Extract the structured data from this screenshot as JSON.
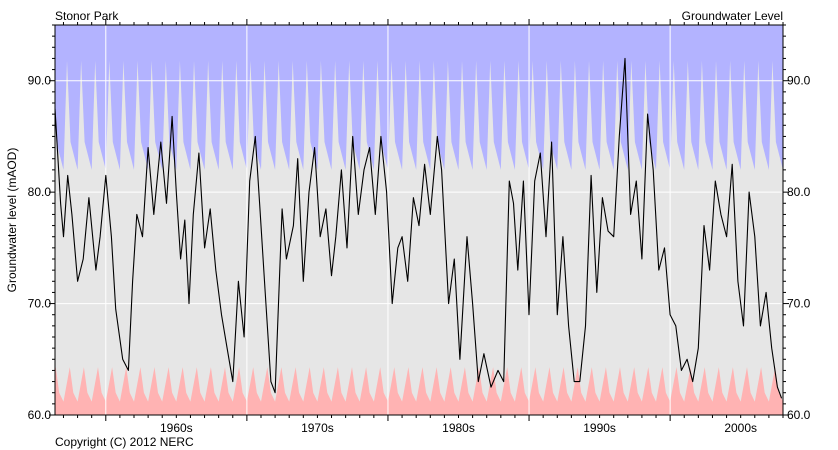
{
  "chart_data": {
    "type": "line",
    "title_left": "Stonor Park",
    "title_right": "Groundwater Level",
    "ylabel": "Groundwater level (mAOD)",
    "copyright": "Copyright (C) 2012 NERC",
    "xlabel": "",
    "xlim": [
      1956.4,
      2008.0
    ],
    "ylim": [
      60.0,
      95.0
    ],
    "x_ticks": [
      {
        "value": 1965.0,
        "label": "1960s"
      },
      {
        "value": 1975.0,
        "label": "1970s"
      },
      {
        "value": 1985.0,
        "label": "1980s"
      },
      {
        "value": 1995.0,
        "label": "1990s"
      },
      {
        "value": 2005.0,
        "label": "2000s"
      }
    ],
    "x_decade_gridlines": [
      1960,
      1970,
      1980,
      1990,
      2000
    ],
    "y_ticks": [
      {
        "value": 60.0,
        "label": "60.0"
      },
      {
        "value": 70.0,
        "label": "70.0"
      },
      {
        "value": 80.0,
        "label": "80.0"
      },
      {
        "value": 90.0,
        "label": "90.0"
      }
    ],
    "grid": true,
    "colors": {
      "plot_background": "#e6e6e6",
      "high_band": "#b3b3ff",
      "low_band": "#ffb3b3",
      "series_line": "#000000",
      "gridline": "#ffffff"
    },
    "series": [
      {
        "x": [
          1956.4,
          1956.8,
          1957.0,
          1957.3,
          1957.6,
          1958.0,
          1958.4,
          1958.8,
          1959.3,
          1959.6,
          1960.0,
          1960.4,
          1960.7,
          1961.2,
          1961.6,
          1961.9,
          1962.2,
          1962.6,
          1963.0,
          1963.4,
          1963.9,
          1964.3,
          1964.7,
          1965.0,
          1965.3,
          1965.6,
          1965.9,
          1966.2,
          1966.6,
          1967.0,
          1967.4,
          1967.8,
          1968.2,
          1968.6,
          1969.0,
          1969.4,
          1969.8,
          1970.2,
          1970.6,
          1970.9,
          1971.3,
          1971.7,
          1972.0,
          1972.5,
          1972.8,
          1973.3,
          1973.6,
          1974.0,
          1974.4,
          1974.8,
          1975.2,
          1975.6,
          1976.0,
          1976.3,
          1976.7,
          1977.1,
          1977.5,
          1977.9,
          1978.3,
          1978.7,
          1979.1,
          1979.5,
          1979.9,
          1980.3,
          1980.7,
          1981.0,
          1981.4,
          1981.8,
          1982.2,
          1982.6,
          1983.0,
          1983.5,
          1983.8,
          1984.3,
          1984.7,
          1985.1,
          1985.6,
          1986.0,
          1986.4,
          1986.8,
          1987.3,
          1987.8,
          1988.2,
          1988.6,
          1988.9,
          1989.2,
          1989.6,
          1990.0,
          1990.4,
          1990.8,
          1991.2,
          1991.6,
          1992.0,
          1992.4,
          1992.8,
          1993.2,
          1993.6,
          1994.0,
          1994.4,
          1994.8,
          1995.2,
          1995.6,
          1996.0,
          1996.4,
          1996.8,
          1997.2,
          1997.6,
          1998.0,
          1998.4,
          1998.8,
          1999.2,
          1999.6,
          2000.0,
          2000.4,
          2000.8,
          2001.2,
          2001.6,
          2002.0,
          2002.4,
          2002.8,
          2003.2,
          2003.6,
          2004.0,
          2004.4,
          2004.8,
          2005.2,
          2005.6,
          2006.0,
          2006.4,
          2006.8,
          2007.2,
          2007.6,
          2007.9
        ],
        "y": [
          87.5,
          79.0,
          76.0,
          81.5,
          78.0,
          72.0,
          74.0,
          79.5,
          73.0,
          76.0,
          81.5,
          76.0,
          69.5,
          65.0,
          64.0,
          72.0,
          78.0,
          76.0,
          84.0,
          78.0,
          84.5,
          79.0,
          86.8,
          80.0,
          74.0,
          77.5,
          70.0,
          78.0,
          83.5,
          75.0,
          78.5,
          73.0,
          69.0,
          66.0,
          63.0,
          72.0,
          67.0,
          81.0,
          85.0,
          79.0,
          71.0,
          63.0,
          62.0,
          78.5,
          74.0,
          77.0,
          83.0,
          72.0,
          80.0,
          84.0,
          76.0,
          78.5,
          72.5,
          76.0,
          82.0,
          75.0,
          85.0,
          78.0,
          82.0,
          84.0,
          78.0,
          85.0,
          80.0,
          70.0,
          75.0,
          76.0,
          72.0,
          79.5,
          77.0,
          82.5,
          78.0,
          85.0,
          82.0,
          70.0,
          74.0,
          65.0,
          76.0,
          70.0,
          63.0,
          65.5,
          62.5,
          64.0,
          63.0,
          81.0,
          79.0,
          73.0,
          81.0,
          69.0,
          81.0,
          83.5,
          76.0,
          84.5,
          69.0,
          76.0,
          68.0,
          63.0,
          63.0,
          68.0,
          81.5,
          71.0,
          79.5,
          76.5,
          76.0,
          85.0,
          92.0,
          78.0,
          81.0,
          74.0,
          87.0,
          82.0,
          73.0,
          75.0,
          69.0,
          68.0,
          64.0,
          65.0,
          63.0,
          66.0,
          77.0,
          73.0,
          81.0,
          78.0,
          76.0,
          82.5,
          72.0,
          68.0,
          80.0,
          76.0,
          68.0,
          71.0,
          66.0,
          62.5,
          61.5
        ]
      }
    ]
  }
}
